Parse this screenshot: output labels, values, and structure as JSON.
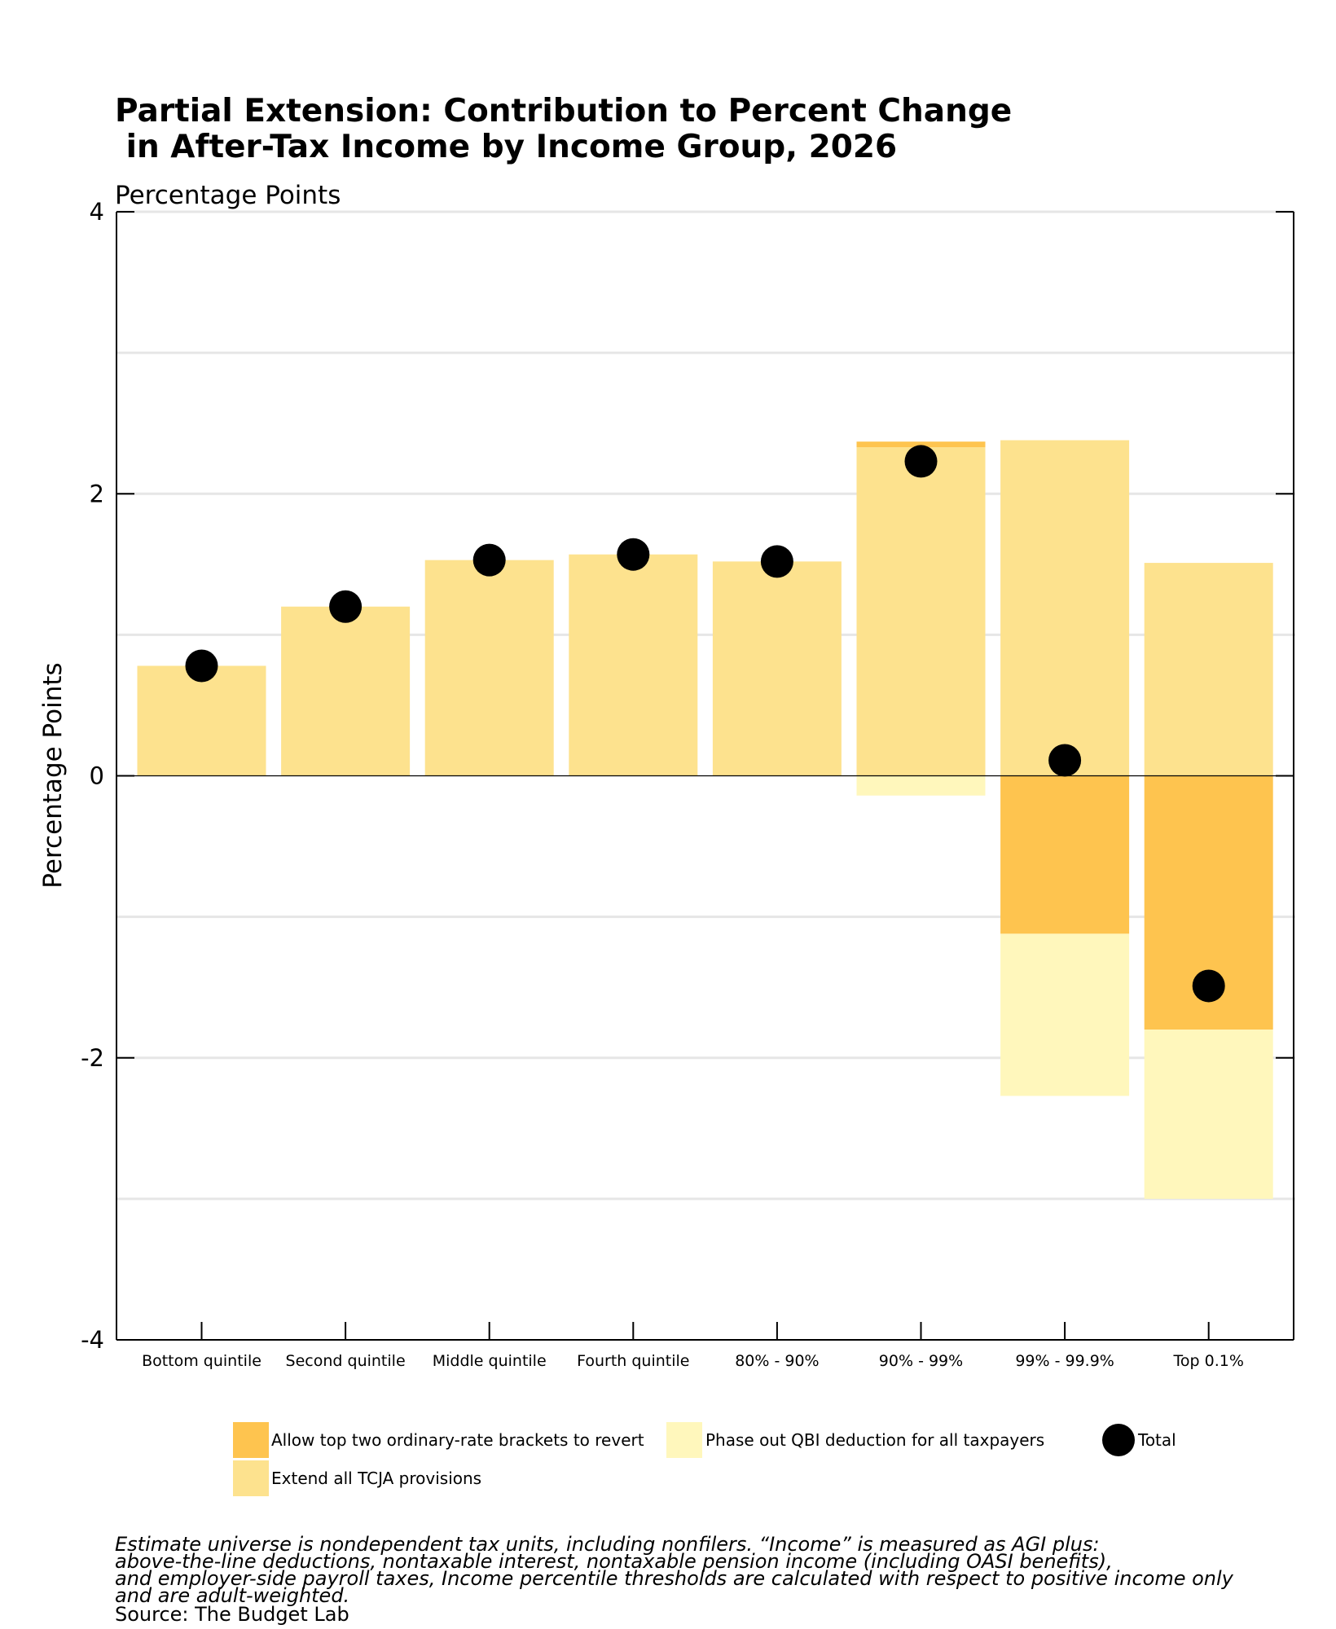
{
  "chart_data": {
    "type": "bar",
    "stacked": true,
    "title_line1": "Partial Extension: Contribution to Percent Change",
    "title_line2": " in After-Tax Income by Income Group, 2026",
    "subtitle": "Percentage Points",
    "ylabel": "Percentage Points",
    "ylim": [
      -4,
      4
    ],
    "yticks": [
      "4",
      "2",
      "0",
      "-2",
      "-4"
    ],
    "ytick_values": [
      4,
      2,
      0,
      -2,
      -4
    ],
    "gridlines": [
      -3,
      -2,
      -1,
      1,
      2,
      3,
      4
    ],
    "categories": [
      "Bottom quintile",
      "Second quintile",
      "Middle quintile",
      "Fourth quintile",
      "80% - 90%",
      "90% - 99%",
      "99% - 99.9%",
      "Top 0.1%"
    ],
    "series": [
      {
        "name": "Allow top two ordinary-rate brackets to revert",
        "color": "#FEC44F",
        "values": [
          0,
          0,
          0,
          0,
          0,
          0.04,
          -1.12,
          -1.8
        ]
      },
      {
        "name": "Phase out QBI deduction for all taxpayers",
        "color": "#FFF7BC",
        "values": [
          0,
          0,
          0,
          0,
          0,
          -0.14,
          -1.15,
          -1.2
        ]
      },
      {
        "name": "Extend all TCJA provisions",
        "color": "#FDE28E",
        "values": [
          0.78,
          1.2,
          1.53,
          1.57,
          1.52,
          2.33,
          2.38,
          1.51
        ]
      }
    ],
    "total": {
      "name": "Total",
      "color": "#000000",
      "values": [
        0.78,
        1.2,
        1.53,
        1.57,
        1.52,
        2.23,
        0.11,
        -1.49
      ]
    },
    "grid": true,
    "legend_position": "bottom"
  },
  "legend": {
    "brackets_label": "Allow top two ordinary-rate brackets to revert",
    "qbi_label": "Phase out QBI deduction for all taxpayers",
    "total_label": "Total",
    "tcja_label": "Extend all TCJA provisions"
  },
  "footnote": {
    "line1": "Estimate universe is nondependent tax units, including nonfilers. “Income” is measured as AGI plus:",
    "line2": "above-the-line deductions, nontaxable interest, nontaxable pension income (including OASI benefits),",
    "line3": "and employer-side payroll taxes, Income percentile thresholds are calculated with respect to positive income only",
    "line4": "and are adult-weighted.",
    "source": "Source: The Budget Lab"
  }
}
